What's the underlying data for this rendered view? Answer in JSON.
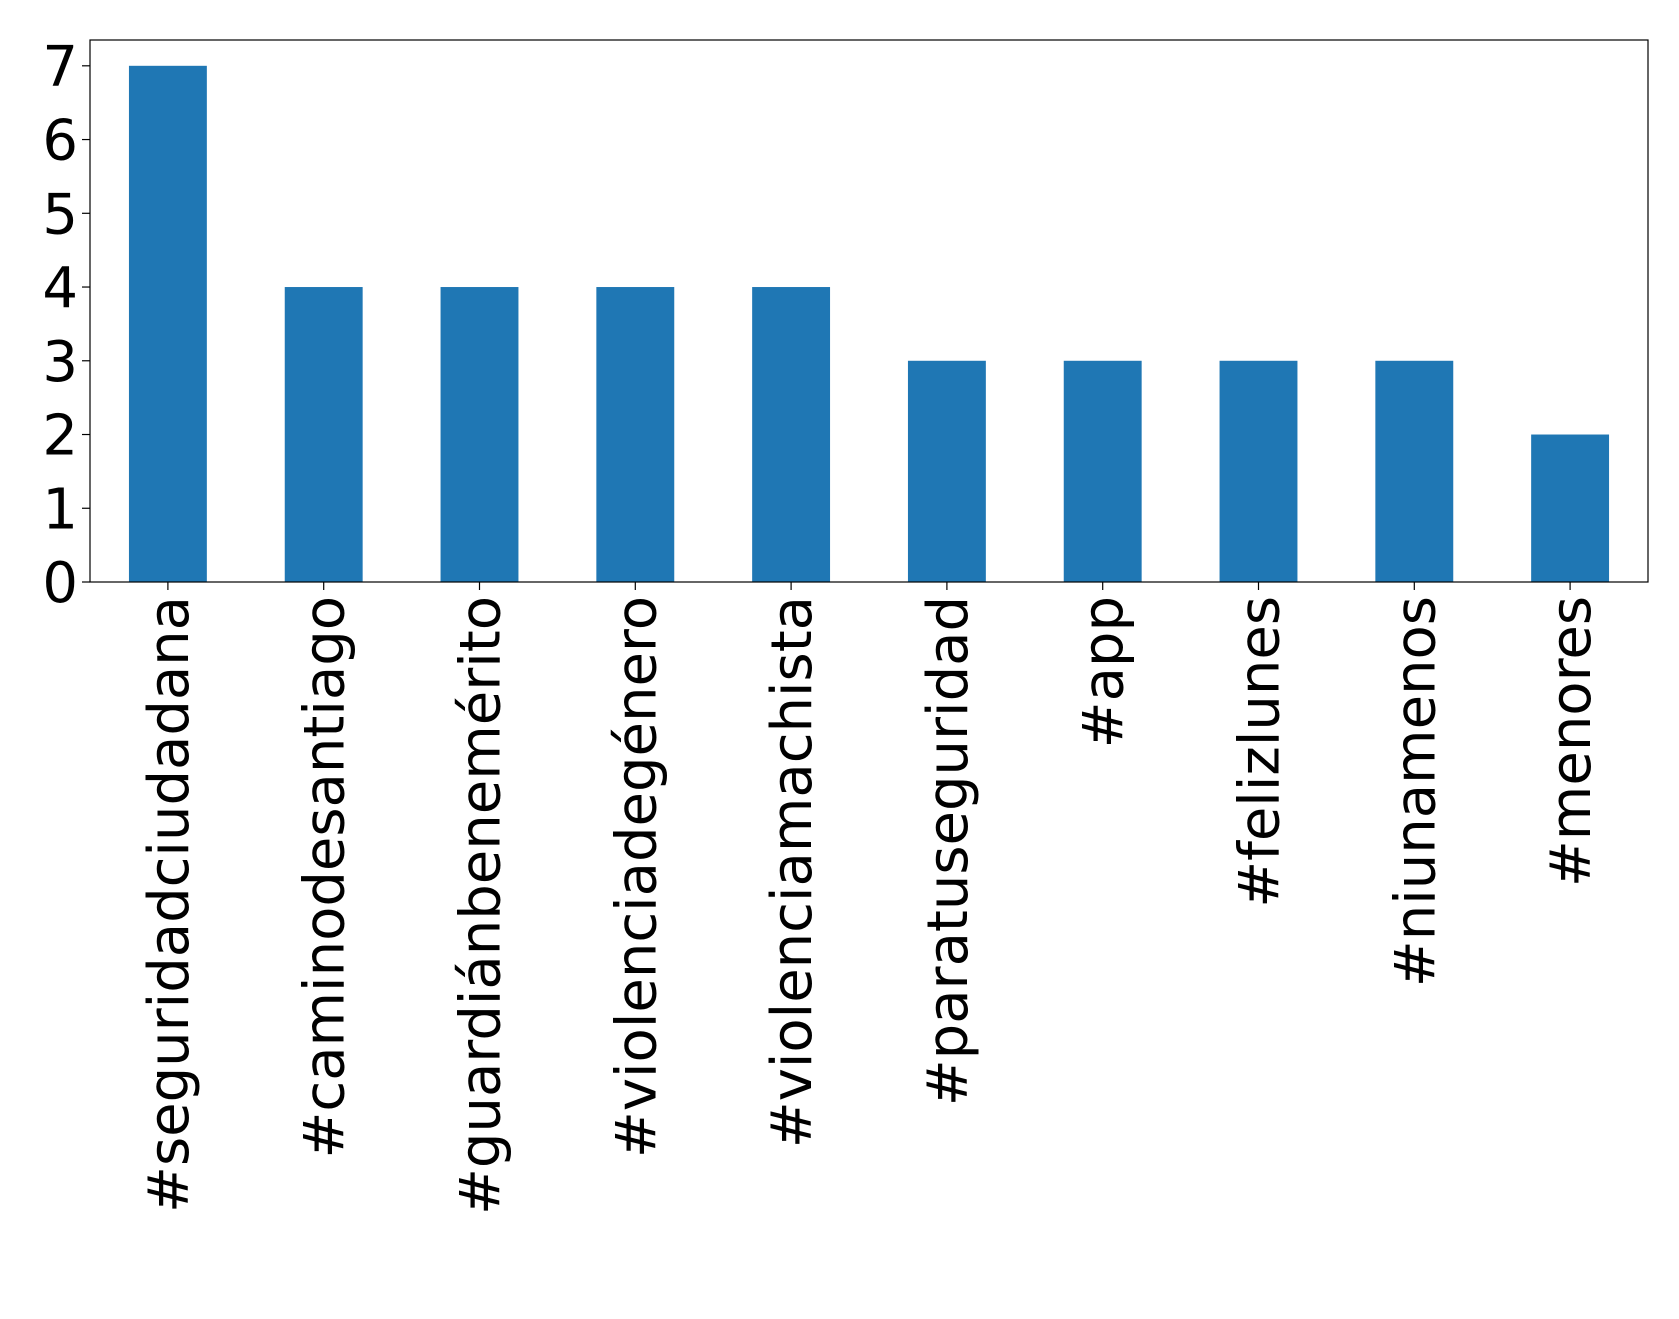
{
  "chart_data": {
    "type": "bar",
    "categories": [
      "#seguridadciudadana",
      "#caminodesantiago",
      "#guardiánbenemérito",
      "#violenciadegénero",
      "#violenciamachista",
      "#paratuseguridad",
      "#app",
      "#felizlunes",
      "#niunamenos",
      "#menores"
    ],
    "values": [
      7,
      4,
      4,
      4,
      4,
      3,
      3,
      3,
      3,
      2
    ],
    "color": "#1f77b4",
    "ylim": [
      0,
      7.35
    ],
    "yticks": [
      0,
      1,
      2,
      3,
      4,
      5,
      6,
      7
    ],
    "grid": false
  }
}
